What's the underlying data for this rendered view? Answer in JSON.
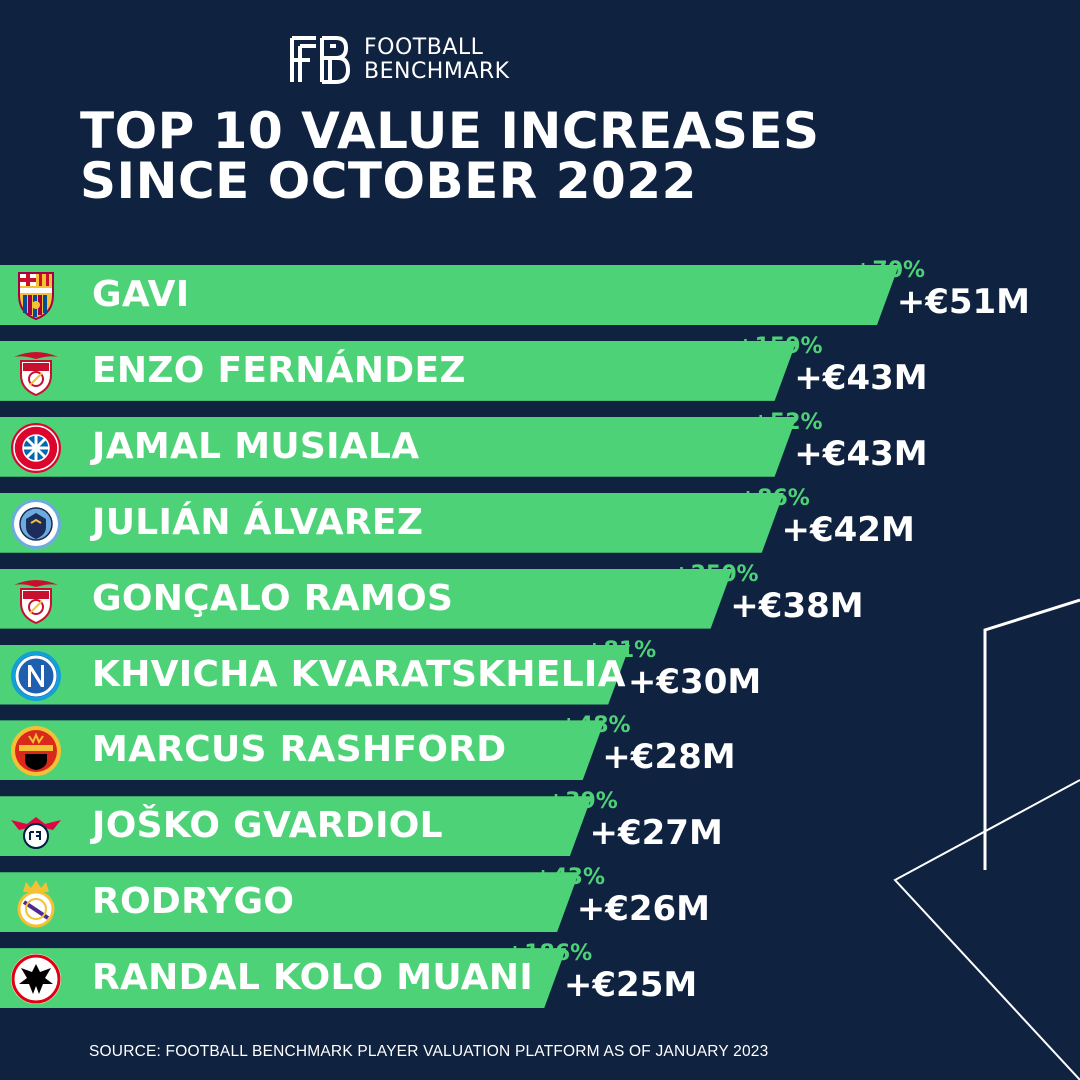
{
  "brand": {
    "line1": "FOOTBALL",
    "line2": "BENCHMARK",
    "logo_mark": "FB"
  },
  "title": {
    "line1": "TOP 10 VALUE INCREASES",
    "line2": "SINCE OCTOBER 2022"
  },
  "source": "SOURCE: FOOTBALL BENCHMARK PLAYER VALUATION PLATFORM AS OF JANUARY 2023",
  "colors": {
    "background": "#0f2240",
    "bar": "#4ed277",
    "text": "#ffffff",
    "percent": "#4ed277"
  },
  "chart_data": {
    "type": "bar",
    "orientation": "horizontal",
    "title": "TOP 10 VALUE INCREASES SINCE OCTOBER 2022",
    "unit": "€M",
    "categories": [
      "GAVI",
      "ENZO FERNÁNDEZ",
      "JAMAL MUSIALA",
      "JULIÁN ÁLVAREZ",
      "GONÇALO RAMOS",
      "KHVICHA KVARATSKHELIA",
      "MARCUS RASHFORD",
      "JOŠKO GVARDIOL",
      "RODRYGO",
      "RANDAL KOLO MUANI"
    ],
    "values": [
      51,
      43,
      43,
      42,
      38,
      30,
      28,
      27,
      26,
      25
    ],
    "value_labels": [
      "+€51M",
      "+€43M",
      "+€43M",
      "+€42M",
      "+€38M",
      "+€30M",
      "+€28M",
      "+€27M",
      "+€26M",
      "+€25M"
    ],
    "percent_labels": [
      "+70%",
      "+159%",
      "+52%",
      "+86%",
      "+250%",
      "+81%",
      "+48%",
      "+39%",
      "+43%",
      "+186%"
    ],
    "club_icons": [
      "fc-barcelona-crest-icon",
      "sl-benfica-crest-icon",
      "fc-bayern-crest-icon",
      "manchester-city-crest-icon",
      "sl-benfica-crest-icon",
      "ssc-napoli-crest-icon",
      "manchester-united-crest-icon",
      "rb-leipzig-crest-icon",
      "real-madrid-crest-icon",
      "eintracht-frankfurt-crest-icon"
    ]
  }
}
